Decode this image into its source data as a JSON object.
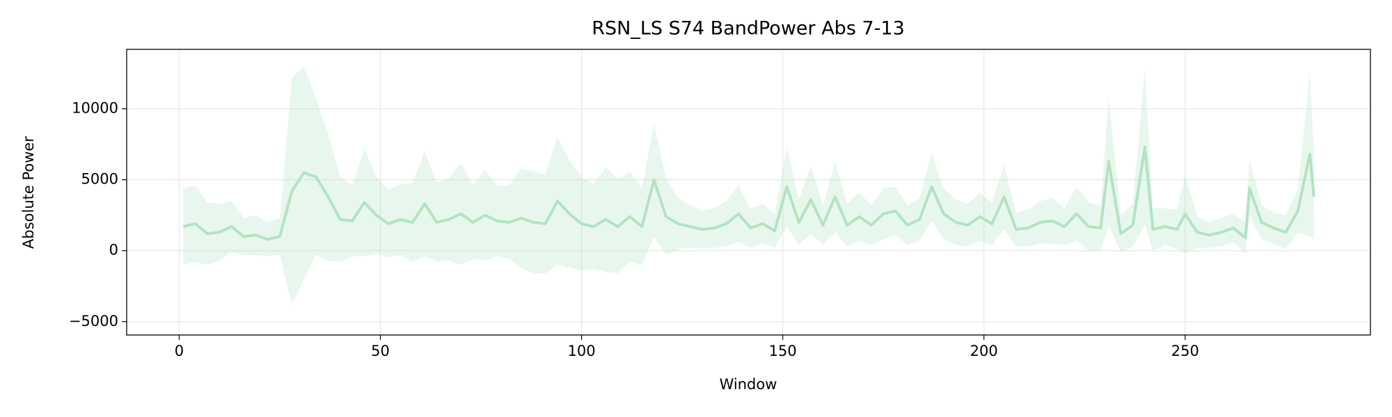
{
  "chart_data": {
    "type": "line-band",
    "title": "RSN_LS S74 BandPower Abs 7-13",
    "x_label": "Window",
    "y_label": "Absolute Power",
    "x": [
      1,
      4,
      7,
      10,
      13,
      16,
      19,
      22,
      25,
      28,
      31,
      34,
      37,
      40,
      43,
      46,
      49,
      52,
      55,
      58,
      61,
      64,
      67,
      70,
      73,
      76,
      79,
      82,
      85,
      88,
      91,
      94,
      97,
      100,
      103,
      106,
      109,
      112,
      115,
      118,
      121,
      124,
      127,
      130,
      133,
      136,
      139,
      142,
      145,
      148,
      151,
      154,
      157,
      160,
      163,
      166,
      169,
      172,
      175,
      178,
      181,
      184,
      187,
      190,
      193,
      196,
      199,
      202,
      205,
      208,
      211,
      214,
      217,
      220,
      223,
      226,
      229,
      231,
      234,
      237,
      240,
      242,
      245,
      248,
      250,
      253,
      256,
      259,
      262,
      265,
      266,
      269,
      272,
      275,
      278,
      281,
      282
    ],
    "values": [
      1700,
      1900,
      1200,
      1300,
      1700,
      1000,
      1100,
      800,
      1000,
      4200,
      5500,
      5200,
      3800,
      2200,
      2100,
      3400,
      2500,
      1900,
      2200,
      2000,
      3300,
      2000,
      2200,
      2600,
      2000,
      2500,
      2100,
      2000,
      2300,
      2000,
      1900,
      3500,
      2600,
      1900,
      1700,
      2200,
      1700,
      2400,
      1700,
      5000,
      2400,
      1900,
      1700,
      1500,
      1600,
      1900,
      2600,
      1600,
      1900,
      1400,
      4500,
      2000,
      3600,
      1800,
      3800,
      1800,
      2400,
      1800,
      2600,
      2800,
      1800,
      2200,
      4500,
      2600,
      2000,
      1800,
      2400,
      1900,
      3800,
      1500,
      1600,
      2000,
      2100,
      1700,
      2600,
      1700,
      1600,
      6300,
      1200,
      1800,
      7300,
      1500,
      1700,
      1500,
      2600,
      1300,
      1100,
      1300,
      1600,
      900,
      4400,
      2000,
      1600,
      1300,
      2800,
      6800,
      3800
    ],
    "errors": [
      2700,
      2700,
      2200,
      2000,
      1800,
      1300,
      1400,
      1200,
      1300,
      8000,
      7500,
      5500,
      4500,
      3000,
      2500,
      3800,
      2700,
      2400,
      2500,
      2800,
      3700,
      2800,
      2900,
      3600,
      2600,
      3200,
      2500,
      2600,
      3500,
      3600,
      3500,
      4500,
      3800,
      3300,
      3000,
      3700,
      3300,
      3200,
      2700,
      4000,
      2700,
      1800,
      1500,
      1300,
      1400,
      1600,
      2000,
      1400,
      1400,
      1200,
      2800,
      1600,
      2400,
      1400,
      2500,
      1500,
      1700,
      1400,
      1800,
      1700,
      1400,
      1500,
      2400,
      1800,
      1600,
      1500,
      1700,
      1500,
      2300,
      1200,
      1300,
      1500,
      1600,
      1300,
      1900,
      1700,
      1600,
      4500,
      1300,
      1500,
      5500,
      1500,
      1300,
      1400,
      2800,
      1100,
      900,
      1000,
      1000,
      1100,
      2000,
      1200,
      1100,
      1200,
      1500,
      5800,
      3000
    ],
    "color": "#b3e3c2",
    "xlim": [
      -13.05,
      296.05
    ],
    "xticks": [
      0,
      50,
      100,
      150,
      200,
      250
    ],
    "ylim": [
      -5940,
      14190
    ],
    "yticks": [
      {
        "value": -5000,
        "label": "−5000"
      },
      0,
      5000,
      10000
    ],
    "grid": true
  }
}
